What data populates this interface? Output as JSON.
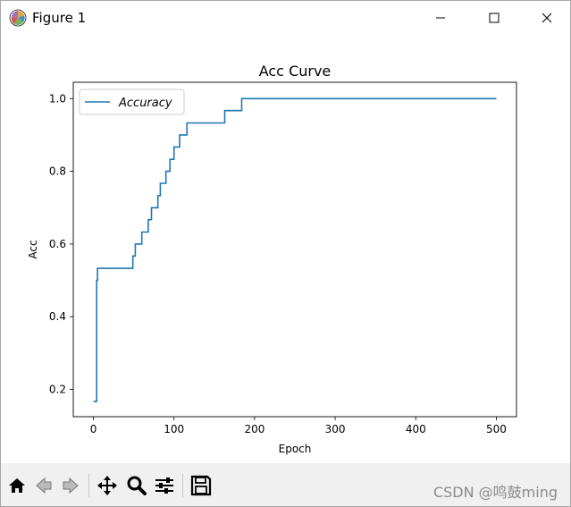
{
  "window": {
    "title": "Figure 1",
    "app_icon": "matplotlib-icon"
  },
  "window_controls": {
    "minimize_icon": "minimize-icon",
    "maximize_icon": "maximize-icon",
    "close_icon": "close-icon"
  },
  "toolbar": {
    "buttons": [
      {
        "name": "home-icon"
      },
      {
        "name": "back-icon"
      },
      {
        "name": "forward-icon"
      },
      {
        "name": "pan-icon"
      },
      {
        "name": "zoom-icon"
      },
      {
        "name": "configure-subplots-icon"
      },
      {
        "name": "save-icon"
      }
    ]
  },
  "watermark": "CSDN @鸣鼓ming",
  "chart_data": {
    "type": "line",
    "title": "Acc Curve",
    "xlabel": "Epoch",
    "ylabel": "Acc",
    "xlim": [
      -25,
      525
    ],
    "ylim": [
      0.125,
      1.045
    ],
    "xticks": [
      "0",
      "100",
      "200",
      "300",
      "400",
      "500"
    ],
    "xtick_values": [
      0,
      100,
      200,
      300,
      400,
      500
    ],
    "yticks": [
      "0.2",
      "0.4",
      "0.6",
      "0.8",
      "1.0"
    ],
    "ytick_values": [
      0.2,
      0.4,
      0.6,
      0.8,
      1.0
    ],
    "grid": false,
    "legend": "upper left",
    "line_color": "#1f77b4",
    "series": [
      {
        "name": "Accuracy",
        "x": [
          0,
          3,
          4,
          4,
          5,
          5,
          49,
          49,
          50,
          50,
          52,
          52,
          60,
          60,
          68,
          68,
          72,
          72,
          75,
          75,
          80,
          80,
          83,
          83,
          90,
          90,
          95,
          95,
          100,
          100,
          107,
          107,
          116,
          116,
          163,
          163,
          184,
          184,
          500
        ],
        "y": [
          0.167,
          0.167,
          0.167,
          0.5,
          0.5,
          0.533,
          0.533,
          0.567,
          0.567,
          0.567,
          0.567,
          0.6,
          0.6,
          0.633,
          0.633,
          0.667,
          0.667,
          0.7,
          0.7,
          0.7,
          0.7,
          0.733,
          0.733,
          0.767,
          0.767,
          0.8,
          0.8,
          0.833,
          0.833,
          0.867,
          0.867,
          0.9,
          0.9,
          0.933,
          0.933,
          0.967,
          0.967,
          1.0,
          1.0
        ]
      }
    ]
  }
}
